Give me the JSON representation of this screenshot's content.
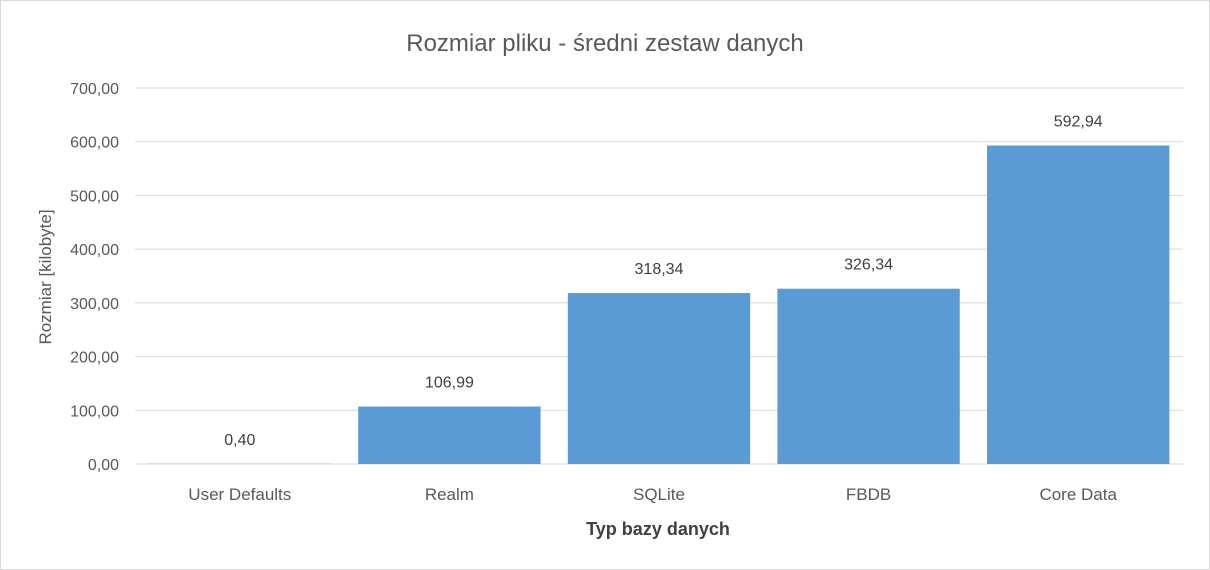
{
  "chart_data": {
    "type": "bar",
    "title": "Rozmiar pliku - średni zestaw danych",
    "xlabel": "Typ bazy danych",
    "ylabel": "Rozmiar [kilobyte]",
    "categories": [
      "User Defaults",
      "Realm",
      "SQLite",
      "FBDB",
      "Core Data"
    ],
    "values": [
      0.4,
      106.99,
      318.34,
      326.34,
      592.94
    ],
    "value_labels": [
      "0,40",
      "106,99",
      "318,34",
      "326,34",
      "592,94"
    ],
    "ylim": [
      0,
      700
    ],
    "yticks": [
      0,
      100,
      200,
      300,
      400,
      500,
      600,
      700
    ],
    "ytick_labels": [
      "0,00",
      "100,00",
      "200,00",
      "300,00",
      "400,00",
      "500,00",
      "600,00",
      "700,00"
    ],
    "grid": true,
    "legend": "none",
    "bar_color": "#5b9bd5"
  }
}
